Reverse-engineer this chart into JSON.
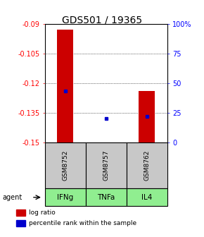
{
  "title": "GDS501 / 19365",
  "samples": [
    "GSM8752",
    "GSM8757",
    "GSM8762"
  ],
  "agents": [
    "IFNg",
    "TNFa",
    "IL4"
  ],
  "log_ratios": [
    -0.093,
    -0.15,
    -0.124
  ],
  "percentile_ranks": [
    43,
    20,
    22
  ],
  "ylim_left": [
    -0.15,
    -0.09
  ],
  "ylim_right": [
    0,
    100
  ],
  "left_ticks": [
    -0.15,
    -0.135,
    -0.12,
    -0.105,
    -0.09
  ],
  "right_ticks": [
    0,
    25,
    50,
    75,
    100
  ],
  "right_tick_labels": [
    "0",
    "25",
    "50",
    "75",
    "100%"
  ],
  "bar_color": "#cc0000",
  "percentile_color": "#0000cc",
  "bar_width": 0.4,
  "sample_box_color": "#c8c8c8",
  "agent_box_color": "#90ee90",
  "title_fontsize": 10,
  "tick_fontsize": 7,
  "legend_fontsize": 6.5,
  "sample_label_fontsize": 6.5,
  "agent_label_fontsize": 7.5
}
